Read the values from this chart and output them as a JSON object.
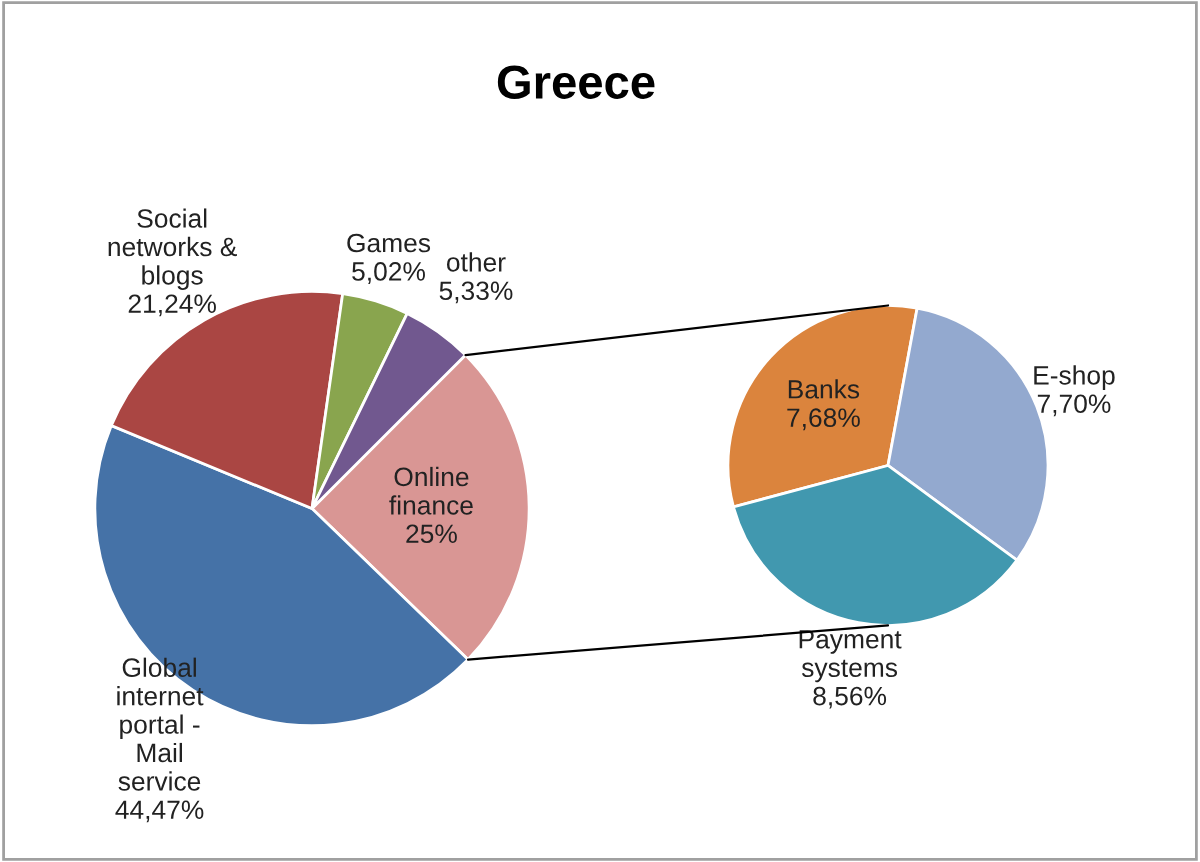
{
  "chart_data": [
    {
      "type": "pie",
      "title": "Greece",
      "categories": [
        "Online finance",
        "Global internet portal - Mail service",
        "Social networks & blogs",
        "Games",
        "other"
      ],
      "values": [
        25,
        44.47,
        21.24,
        5.02,
        5.33
      ],
      "colors": [
        "#d99694",
        "#4572a7",
        "#aa4643",
        "#89a54e",
        "#71588f"
      ],
      "value_labels": [
        "25%",
        "44,47%",
        "21,24%",
        "5,02%",
        "5,33%"
      ]
    },
    {
      "type": "pie",
      "categories": [
        "Banks",
        "E-shop",
        "Payment systems"
      ],
      "values": [
        7.68,
        7.7,
        8.56
      ],
      "colors": [
        "#db843d",
        "#93a9cf",
        "#4198af"
      ],
      "value_labels": [
        "7,68%",
        "7,70%",
        "8,56%"
      ]
    }
  ]
}
